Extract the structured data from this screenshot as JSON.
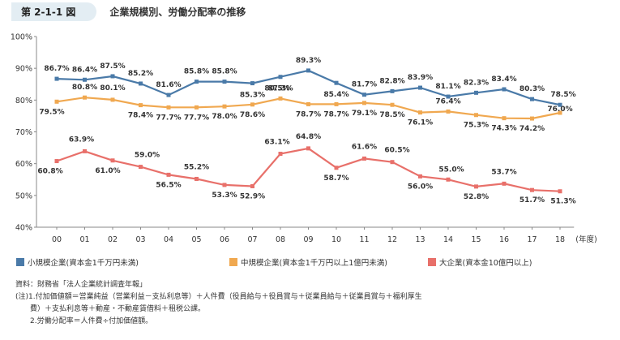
{
  "header": {
    "badge": "第 2-1-1 図",
    "title": "企業規模別、労働分配率の推移"
  },
  "chart_data": {
    "type": "line",
    "categories": [
      "00",
      "01",
      "02",
      "03",
      "04",
      "05",
      "06",
      "07",
      "08",
      "09",
      "10",
      "11",
      "12",
      "13",
      "14",
      "15",
      "16",
      "17",
      "18"
    ],
    "x_unit": "(年度)",
    "ylim": [
      40,
      100
    ],
    "yticks": [
      "40%",
      "50%",
      "60%",
      "70%",
      "80%",
      "90%",
      "100%"
    ],
    "grid": false,
    "legend_position": "bottom",
    "series": [
      {
        "name": "小規模企業(資本金1千万円未満)",
        "color": "#4a7aa8",
        "values": [
          86.7,
          86.4,
          87.5,
          85.2,
          81.6,
          85.8,
          85.8,
          85.3,
          87.3,
          89.3,
          85.4,
          81.7,
          82.8,
          83.9,
          81.1,
          82.3,
          83.4,
          80.3,
          78.5
        ],
        "labels": [
          "86.7%",
          "86.4%",
          "87.5%",
          "85.2%",
          "81.6%",
          "85.8%",
          "85.8%",
          "85.3%",
          "87.3%",
          "89.3%",
          "85.4%",
          "81.7%",
          "82.8%",
          "83.9%",
          "81.1%",
          "82.3%",
          "83.4%",
          "80.3%",
          "78.5%"
        ]
      },
      {
        "name": "中規模企業(資本金1千万円以上1億円未満)",
        "color": "#f0a850",
        "values": [
          79.5,
          80.8,
          80.1,
          78.4,
          77.7,
          77.7,
          78.0,
          78.6,
          80.5,
          78.7,
          78.7,
          79.1,
          78.5,
          76.1,
          76.4,
          75.3,
          74.3,
          74.2,
          76.0
        ],
        "labels": [
          "79.5%",
          "80.8%",
          "80.1%",
          "78.4%",
          "77.7%",
          "77.7%",
          "78.0%",
          "78.6%",
          "80.5%",
          "78.7%",
          "78.7%",
          "79.1%",
          "78.5%",
          "76.1%",
          "76.4%",
          "75.3%",
          "74.3%",
          "74.2%",
          "76.0%"
        ]
      },
      {
        "name": "大企業(資本金10億円以上)",
        "color": "#e8706a",
        "values": [
          60.8,
          63.9,
          61.0,
          59.0,
          56.5,
          55.2,
          53.3,
          52.9,
          63.1,
          64.8,
          58.7,
          61.6,
          60.5,
          56.0,
          55.0,
          52.8,
          53.7,
          51.7,
          51.3
        ],
        "labels": [
          "60.8%",
          "63.9%",
          "61.0%",
          "59.0%",
          "56.5%",
          "55.2%",
          "53.3%",
          "52.9%",
          "63.1%",
          "64.8%",
          "58.7%",
          "61.6%",
          "60.5%",
          "56.0%",
          "55.0%",
          "52.8%",
          "53.7%",
          "51.7%",
          "51.3%"
        ]
      }
    ]
  },
  "notes": {
    "line1": "資料：財務省「法人企業統計調査年報」",
    "line2": "(注)1.付加価値額＝営業純益（営業利益－支払利息等）＋人件費（役員給与＋役員賞与＋従業員給与＋従業員賞与＋福利厚生",
    "line3": "　　費）＋支払利息等＋動産・不動産賃借料＋租税公課。",
    "line4": "　　2.労働分配率＝人件費÷付加価値額。"
  }
}
